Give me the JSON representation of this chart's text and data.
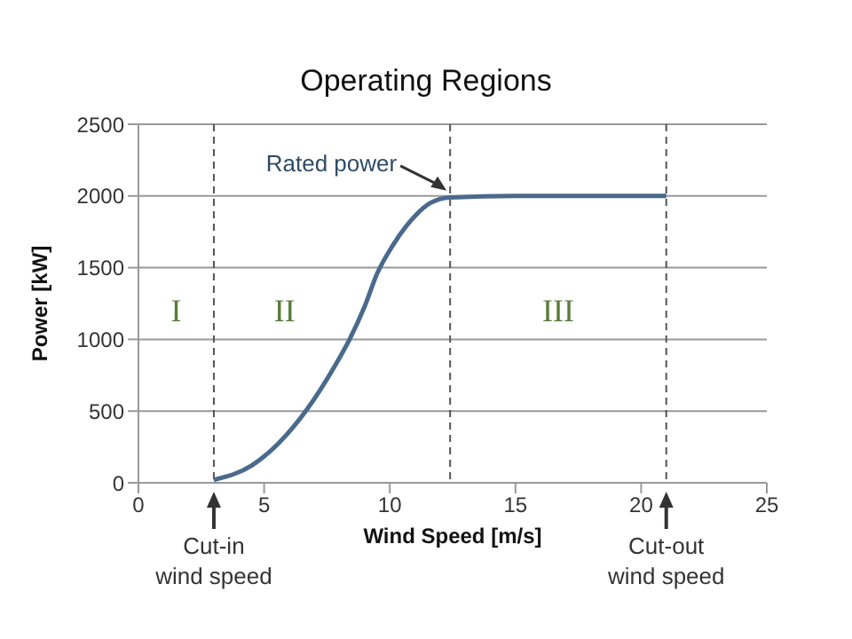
{
  "chart_data": {
    "type": "line",
    "title": "Operating Regions",
    "xlabel": "Wind Speed [m/s]",
    "ylabel": "Power [kW]",
    "x": [
      3,
      4.5,
      5.6,
      6.7,
      7.8,
      8.4,
      9,
      9.5,
      10.1,
      11,
      11.6,
      12.4,
      15,
      18,
      21
    ],
    "series": [
      {
        "color": "#4a6a8c",
        "values": [
          20,
          120,
          280,
          510,
          810,
          1000,
          1230,
          1460,
          1650,
          1860,
          1950,
          1990,
          2000,
          2000,
          2000
        ]
      }
    ],
    "xlim": [
      0,
      25
    ],
    "xticks": [
      0,
      5,
      10,
      15,
      20,
      25
    ],
    "ylim": [
      0,
      2500
    ],
    "yticks": [
      0,
      500,
      1000,
      1500,
      2000,
      2500
    ],
    "grid": "y",
    "marker": "none",
    "line_style": "solid",
    "ref_lines": [
      {
        "axis": "x",
        "value": 3,
        "line_style": "dashed",
        "color": "#555555"
      },
      {
        "axis": "x",
        "value": 12.4,
        "line_style": "dashed",
        "color": "#555555"
      },
      {
        "axis": "x",
        "value": 21,
        "line_style": "dashed",
        "color": "#555555"
      }
    ],
    "annotations": [
      {
        "text": "Rated power",
        "x": 12.4,
        "y": 2000
      },
      "I",
      "II",
      "III",
      "Cut-in wind speed",
      "Cut-out wind speed"
    ]
  }
}
